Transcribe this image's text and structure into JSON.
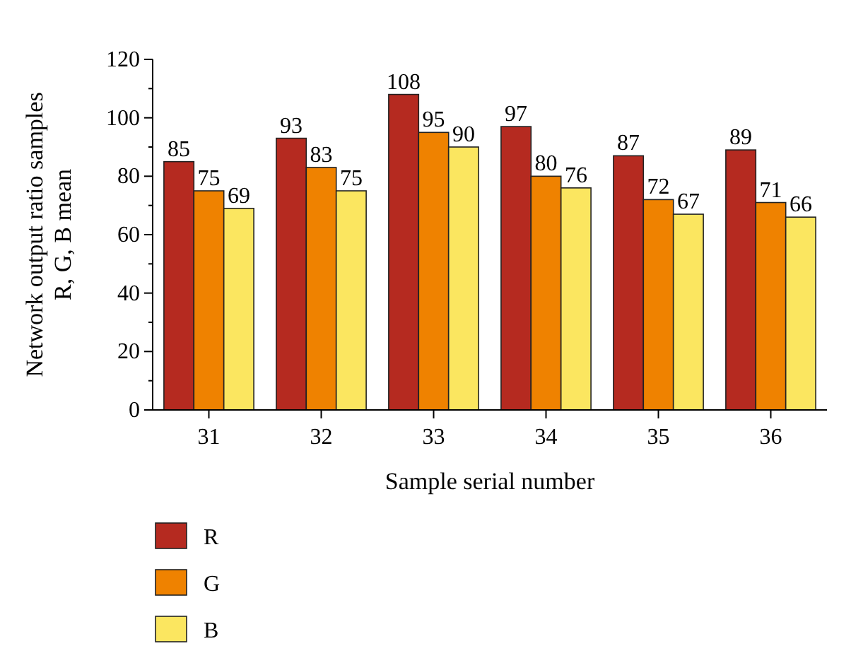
{
  "chart_data": {
    "type": "bar",
    "xlabel": "Sample serial number",
    "ylabel": "Network output ratio samples R, G, B mean",
    "categories": [
      "31",
      "32",
      "33",
      "34",
      "35",
      "36"
    ],
    "series": [
      {
        "name": "R",
        "color": "#b52a20",
        "values": [
          85,
          93,
          108,
          97,
          87,
          89
        ]
      },
      {
        "name": "G",
        "color": "#ef8200",
        "values": [
          75,
          83,
          95,
          80,
          72,
          71
        ]
      },
      {
        "name": "B",
        "color": "#fbe660",
        "values": [
          69,
          75,
          90,
          76,
          67,
          66
        ]
      }
    ],
    "ylim": [
      0,
      120
    ],
    "yticks": [
      0,
      {
        "value": 10,
        "label": null
      },
      20,
      {
        "value": 30,
        "label": null
      },
      40,
      {
        "value": 50,
        "label": null
      },
      60,
      {
        "value": 70,
        "label": null
      },
      80,
      {
        "value": 90,
        "label": null
      },
      100,
      {
        "value": 110,
        "label": null
      },
      120
    ],
    "data_labels": true,
    "legend": "bottom",
    "grid": false
  }
}
